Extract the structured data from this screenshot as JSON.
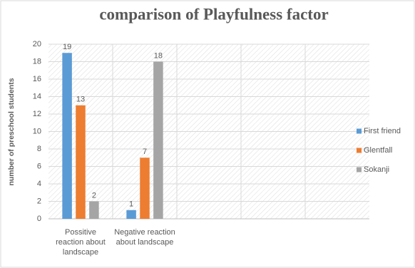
{
  "chart_data": {
    "type": "bar",
    "title": "comparison of Playfulness factor",
    "y_label": "number of preschool students",
    "categories": [
      "Possitive reaction about landscape",
      "Negative reaction about landscape",
      null,
      null,
      null
    ],
    "series": [
      {
        "name": "First friend",
        "color": "#5b9bd5",
        "values": [
          19,
          1,
          null,
          null,
          null
        ]
      },
      {
        "name": "Glentfall",
        "color": "#ed7d31",
        "values": [
          13,
          7,
          null,
          null,
          null
        ]
      },
      {
        "name": "Sokanji",
        "color": "#a5a5a5",
        "values": [
          2,
          18,
          null,
          null,
          null
        ]
      }
    ],
    "ylim": [
      0,
      20
    ],
    "yticks": [
      0,
      2,
      4,
      6,
      8,
      10,
      12,
      14,
      16,
      18,
      20
    ],
    "grid": true,
    "legend": "right",
    "data_labels": true
  }
}
